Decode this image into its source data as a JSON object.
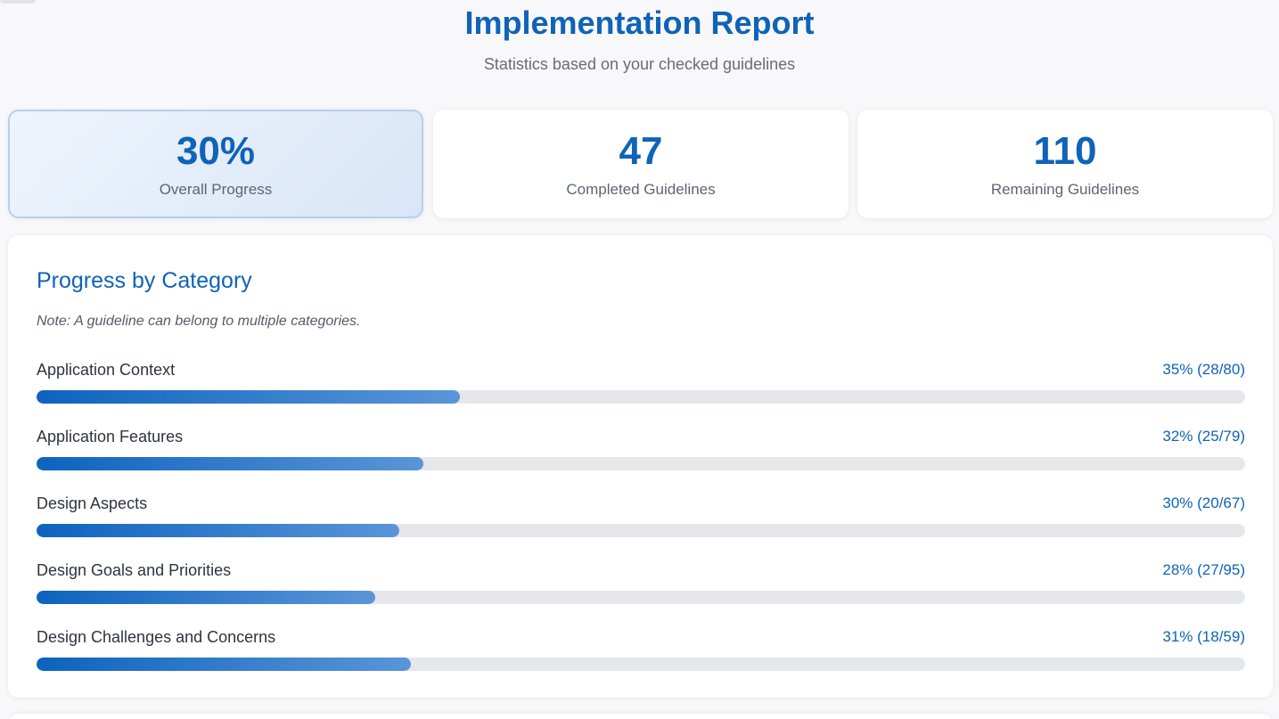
{
  "header": {
    "title": "Implementation Report",
    "subtitle": "Statistics based on your checked guidelines"
  },
  "stats": [
    {
      "value": "30%",
      "label": "Overall Progress"
    },
    {
      "value": "47",
      "label": "Completed Guidelines"
    },
    {
      "value": "110",
      "label": "Remaining Guidelines"
    }
  ],
  "categories": {
    "title": "Progress by Category",
    "note": "Note: A guideline can belong to multiple categories.",
    "items": [
      {
        "label": "Application Context",
        "value": "35% (28/80)",
        "percent": 35
      },
      {
        "label": "Application Features",
        "value": "32% (25/79)",
        "percent": 32
      },
      {
        "label": "Design Aspects",
        "value": "30% (20/67)",
        "percent": 30
      },
      {
        "label": "Design Goals and Priorities",
        "value": "28% (27/95)",
        "percent": 28
      },
      {
        "label": "Design Challenges and Concerns",
        "value": "31% (18/59)",
        "percent": 31
      }
    ]
  },
  "colors": {
    "accent": "#0f63b8",
    "bar_start": "#0d63be",
    "bar_end": "#5a95d8",
    "track": "#e5e7eb"
  }
}
